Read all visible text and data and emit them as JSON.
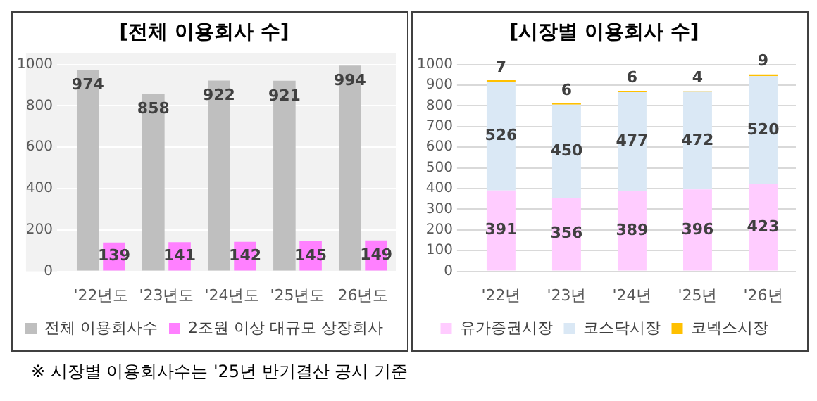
{
  "chart_data": [
    {
      "type": "bar",
      "title": "[전체 이용회사 수]",
      "categories": [
        "'22년도",
        "'23년도",
        "'24년도",
        "'25년도",
        "26년도"
      ],
      "series": [
        {
          "name": "전체 이용회사수",
          "color": "#bfbfbf",
          "values": [
            974,
            858,
            922,
            921,
            994
          ]
        },
        {
          "name": "2조원 이상 대규모 상장회사",
          "color": "#ff80ff",
          "values": [
            139,
            141,
            142,
            145,
            149
          ]
        }
      ],
      "ylim": [
        0,
        1000
      ],
      "yticks": [
        0,
        200,
        400,
        600,
        800,
        1000
      ],
      "grid": "y",
      "legend": "bottom",
      "data_labels": true
    },
    {
      "type": "bar",
      "title": "[시장별 이용회사 수]",
      "categories": [
        "'22년",
        "'23년",
        "'24년",
        "'25년",
        "'26년"
      ],
      "stacked": true,
      "series": [
        {
          "name": "유가증권시장",
          "color": "#ffccff",
          "values": [
            391,
            356,
            389,
            396,
            423
          ]
        },
        {
          "name": "코스닥시장",
          "color": "#dae8f5",
          "values": [
            526,
            450,
            477,
            472,
            520
          ]
        },
        {
          "name": "코넥스시장",
          "color": "#ffc000",
          "values": [
            7,
            6,
            6,
            4,
            9
          ]
        }
      ],
      "ylim": [
        0,
        1000
      ],
      "yticks": [
        0,
        100,
        200,
        300,
        400,
        500,
        600,
        700,
        800,
        900,
        1000
      ],
      "grid": "y",
      "legend": "bottom",
      "data_labels": true,
      "annotations": [
        "※ 시장별 이용회사수는 '25년 반기결산 공시 기준"
      ]
    }
  ]
}
